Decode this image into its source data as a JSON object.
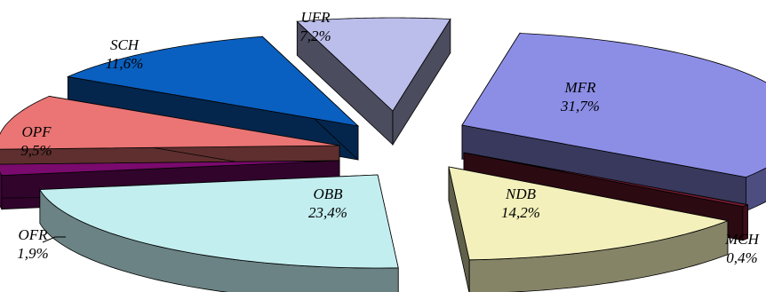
{
  "chart_data": {
    "type": "pie",
    "style": "3d-exploded",
    "slices": [
      {
        "name": "MFR",
        "value": 31.7,
        "label": "31,7%",
        "color": "#8c8ee6"
      },
      {
        "name": "MCH",
        "value": 0.4,
        "label": "0,4%",
        "color": "#6e1a2e"
      },
      {
        "name": "NDB",
        "value": 14.2,
        "label": "14,2%",
        "color": "#f3f0bb"
      },
      {
        "name": "OBB",
        "value": 23.4,
        "label": "23,4%",
        "color": "#c3eef0"
      },
      {
        "name": "OFR",
        "value": 1.9,
        "label": "1,9%",
        "color": "#7a0a6e"
      },
      {
        "name": "OPF",
        "value": 9.5,
        "label": "9,5%",
        "color": "#ea7574"
      },
      {
        "name": "SCH",
        "value": 11.6,
        "label": "11,6%",
        "color": "#0a60c0"
      },
      {
        "name": "UFR",
        "value": 7.2,
        "label": "7,2%",
        "color": "#bbbdea"
      }
    ]
  }
}
